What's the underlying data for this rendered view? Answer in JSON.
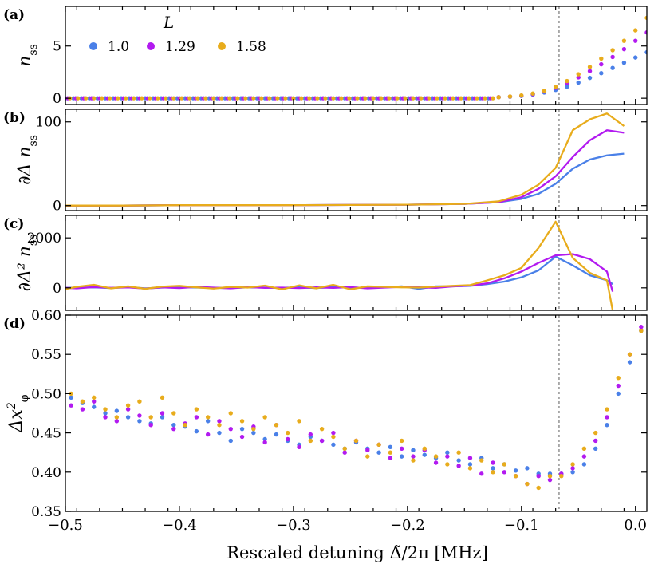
{
  "chart_data": {
    "type": "multi-panel",
    "xlabel": "Rescaled detuning Δ̃/2π [MHz]",
    "xlim": [
      -0.5,
      0.01
    ],
    "x_ticks": [
      -0.5,
      -0.4,
      -0.3,
      -0.2,
      -0.1,
      0.0
    ],
    "x_tick_labels": [
      "−0.5",
      "−0.4",
      "−0.3",
      "−0.2",
      "−0.1",
      "0.0"
    ],
    "vline_x": -0.067,
    "legend": {
      "title": "L",
      "placement": "top-left",
      "entries": [
        "1.0",
        "1.29",
        "1.58"
      ]
    },
    "series_names": [
      "1.0",
      "1.29",
      "1.58"
    ],
    "colors": {
      "1.0": "#4a80e8",
      "1.29": "#b21af0",
      "1.58": "#e8ac1c"
    },
    "panels": [
      {
        "label": "(a)",
        "type": "scatter",
        "ylabel": "n",
        "ylabel_sub": "ss",
        "ylim": [
          -0.6,
          8.8
        ],
        "y_ticks": [
          0,
          5
        ],
        "y_tick_labels": [
          "0",
          "5"
        ],
        "x": [
          -0.12,
          -0.11,
          -0.1,
          -0.09,
          -0.08,
          -0.07,
          -0.06,
          -0.05,
          -0.04,
          -0.03,
          -0.02,
          -0.01,
          0.0,
          0.01
        ],
        "series": [
          {
            "name": "1.0",
            "values": [
              0.1,
              0.15,
              0.22,
              0.35,
              0.55,
              0.8,
              1.1,
              1.5,
              1.95,
              2.4,
              2.9,
              3.4,
              3.9,
              4.4
            ]
          },
          {
            "name": "1.29",
            "values": [
              0.1,
              0.16,
              0.25,
              0.4,
              0.65,
              1.0,
              1.45,
              2.0,
              2.6,
              3.25,
              3.95,
              4.7,
              5.5,
              6.3
            ]
          },
          {
            "name": "1.58",
            "values": [
              0.1,
              0.17,
              0.27,
              0.45,
              0.72,
              1.1,
              1.65,
              2.3,
              3.0,
              3.8,
              4.6,
              5.5,
              6.5,
              7.7
            ]
          }
        ]
      },
      {
        "label": "(b)",
        "type": "line",
        "ylabel": "∂Δ n",
        "ylabel_sub": "ss",
        "ylim": [
          -6,
          115
        ],
        "y_ticks": [
          0,
          100
        ],
        "y_tick_labels": [
          "0",
          "100"
        ],
        "x": [
          -0.5,
          -0.45,
          -0.4,
          -0.35,
          -0.3,
          -0.25,
          -0.2,
          -0.15,
          -0.12,
          -0.1,
          -0.085,
          -0.07,
          -0.055,
          -0.04,
          -0.025,
          -0.01
        ],
        "series": [
          {
            "name": "1.0",
            "values": [
              0,
              0,
              0.5,
              0.5,
              0.5,
              0.8,
              1,
              2,
              4,
              8,
              14,
              26,
              44,
              55,
              60,
              62
            ]
          },
          {
            "name": "1.29",
            "values": [
              0,
              0,
              0.5,
              0.5,
              0.5,
              0.8,
              1,
              2,
              4,
              10,
              20,
              35,
              58,
              78,
              90,
              87
            ]
          },
          {
            "name": "1.58",
            "values": [
              0,
              0,
              0.5,
              0.5,
              0.5,
              0.8,
              1,
              2,
              5,
              13,
              25,
              45,
              90,
              103,
              110,
              95
            ]
          }
        ]
      },
      {
        "label": "(c)",
        "type": "line",
        "ylabel": "∂Δ² n",
        "ylabel_sub": "ss",
        "ylim": [
          -900,
          2900
        ],
        "y_ticks": [
          0,
          2000
        ],
        "y_tick_labels": [
          "0",
          "2000"
        ],
        "x": [
          -0.5,
          -0.49,
          -0.475,
          -0.46,
          -0.445,
          -0.43,
          -0.415,
          -0.4,
          -0.385,
          -0.37,
          -0.355,
          -0.34,
          -0.325,
          -0.31,
          -0.295,
          -0.28,
          -0.265,
          -0.25,
          -0.235,
          -0.22,
          -0.205,
          -0.19,
          -0.175,
          -0.16,
          -0.145,
          -0.13,
          -0.115,
          -0.1,
          -0.085,
          -0.07,
          -0.055,
          -0.04,
          -0.025,
          -0.02
        ],
        "series": [
          {
            "name": "1.0",
            "values": [
              0,
              10,
              20,
              -10,
              30,
              -20,
              10,
              30,
              10,
              0,
              -10,
              20,
              10,
              0,
              20,
              -10,
              30,
              10,
              0,
              20,
              60,
              -40,
              60,
              60,
              80,
              150,
              250,
              420,
              700,
              1250,
              900,
              500,
              300,
              150
            ]
          },
          {
            "name": "1.29",
            "values": [
              0,
              -20,
              30,
              0,
              20,
              -30,
              20,
              -10,
              40,
              10,
              -20,
              30,
              0,
              10,
              -10,
              20,
              0,
              30,
              -20,
              10,
              40,
              20,
              0,
              60,
              90,
              180,
              380,
              650,
              1000,
              1300,
              1350,
              1150,
              650,
              -150
            ]
          },
          {
            "name": "1.58",
            "values": [
              -50,
              40,
              120,
              -20,
              60,
              -40,
              50,
              80,
              20,
              -30,
              40,
              10,
              90,
              -60,
              100,
              -20,
              120,
              -60,
              60,
              40,
              20,
              10,
              50,
              80,
              110,
              300,
              500,
              800,
              1600,
              2650,
              1200,
              600,
              300,
              -900
            ]
          }
        ]
      },
      {
        "label": "(d)",
        "type": "scatter",
        "ylabel": "Δx",
        "ylabel_sup": "2",
        "ylabel_sub": "φ",
        "ylim": [
          0.35,
          0.6
        ],
        "y_ticks": [
          0.35,
          0.4,
          0.45,
          0.5,
          0.55,
          0.6
        ],
        "y_tick_labels": [
          "0.35",
          "0.40",
          "0.45",
          "0.50",
          "0.55",
          "0.60"
        ],
        "x": [
          -0.495,
          -0.485,
          -0.475,
          -0.465,
          -0.455,
          -0.445,
          -0.435,
          -0.425,
          -0.415,
          -0.405,
          -0.395,
          -0.385,
          -0.375,
          -0.365,
          -0.355,
          -0.345,
          -0.335,
          -0.325,
          -0.315,
          -0.305,
          -0.295,
          -0.285,
          -0.275,
          -0.265,
          -0.255,
          -0.245,
          -0.235,
          -0.225,
          -0.215,
          -0.205,
          -0.195,
          -0.185,
          -0.175,
          -0.165,
          -0.155,
          -0.145,
          -0.135,
          -0.125,
          -0.115,
          -0.105,
          -0.095,
          -0.085,
          -0.075,
          -0.065,
          -0.055,
          -0.045,
          -0.035,
          -0.025,
          -0.015,
          -0.005,
          0.005
        ],
        "series": [
          {
            "name": "1.0",
            "values": [
              0.495,
              0.488,
              0.483,
              0.475,
              0.478,
              0.47,
              0.465,
              0.462,
              0.47,
              0.46,
              0.458,
              0.452,
              0.465,
              0.45,
              0.44,
              0.455,
              0.45,
              0.442,
              0.448,
              0.44,
              0.435,
              0.445,
              0.44,
              0.435,
              0.43,
              0.438,
              0.43,
              0.425,
              0.432,
              0.42,
              0.428,
              0.422,
              0.418,
              0.425,
              0.415,
              0.41,
              0.418,
              0.405,
              0.41,
              0.402,
              0.405,
              0.398,
              0.398,
              0.398,
              0.4,
              0.41,
              0.43,
              0.46,
              0.5,
              0.54,
              0.58
            ]
          },
          {
            "name": "1.29",
            "values": [
              0.485,
              0.48,
              0.49,
              0.47,
              0.465,
              0.48,
              0.472,
              0.46,
              0.475,
              0.455,
              0.462,
              0.47,
              0.448,
              0.465,
              0.455,
              0.445,
              0.458,
              0.438,
              0.46,
              0.442,
              0.432,
              0.448,
              0.44,
              0.45,
              0.425,
              0.44,
              0.428,
              0.435,
              0.418,
              0.43,
              0.42,
              0.428,
              0.412,
              0.42,
              0.408,
              0.418,
              0.398,
              0.412,
              0.4,
              0.395,
              0.385,
              0.395,
              0.39,
              0.398,
              0.405,
              0.42,
              0.44,
              0.47,
              0.51,
              0.55,
              0.585
            ]
          },
          {
            "name": "1.58",
            "values": [
              0.5,
              0.49,
              0.495,
              0.48,
              0.47,
              0.485,
              0.49,
              0.47,
              0.495,
              0.475,
              0.46,
              0.48,
              0.47,
              0.46,
              0.475,
              0.465,
              0.455,
              0.47,
              0.46,
              0.45,
              0.465,
              0.44,
              0.455,
              0.445,
              0.43,
              0.44,
              0.42,
              0.435,
              0.425,
              0.44,
              0.415,
              0.43,
              0.42,
              0.41,
              0.425,
              0.405,
              0.415,
              0.4,
              0.41,
              0.395,
              0.385,
              0.38,
              0.395,
              0.395,
              0.41,
              0.43,
              0.45,
              0.48,
              0.52,
              0.55,
              0.58
            ]
          }
        ]
      }
    ]
  }
}
